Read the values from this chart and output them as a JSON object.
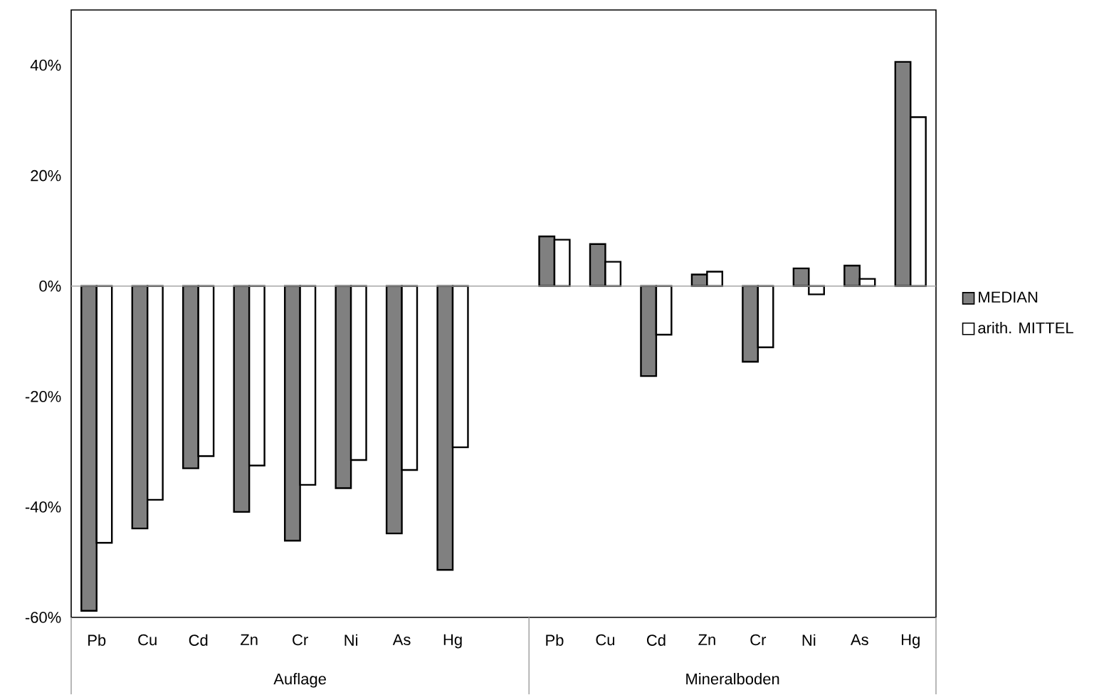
{
  "chart_data": {
    "type": "bar",
    "categories": [
      "Pb",
      "Cu",
      "Cd",
      "Zn",
      "Cr",
      "Ni",
      "As",
      "Hg",
      null,
      "Pb",
      "Cu",
      "Cd",
      "Zn",
      "Cr",
      "Ni",
      "As",
      "Hg"
    ],
    "series": [
      {
        "name": "MEDIAN",
        "color": "#808080",
        "values": [
          -58.8,
          -43.9,
          -33.0,
          -40.9,
          -46.1,
          -36.6,
          -44.8,
          -51.4,
          null,
          9.0,
          7.6,
          -16.3,
          2.1,
          -13.7,
          3.2,
          3.7,
          40.6
        ]
      },
      {
        "name": "arith. MITTEL",
        "color": "#ffffff",
        "values": [
          -46.5,
          -38.7,
          -30.8,
          -32.5,
          -36.0,
          -31.5,
          -33.3,
          -29.2,
          null,
          8.4,
          4.4,
          -8.8,
          2.6,
          -11.1,
          -1.5,
          1.3,
          30.6
        ]
      }
    ],
    "ylim": [
      -60,
      50
    ],
    "yticks": [
      {
        "value": -60,
        "label": "-60%"
      },
      {
        "value": -40,
        "label": "-40%"
      },
      {
        "value": -20,
        "label": "-20%"
      },
      {
        "value": 0,
        "label": "0%"
      },
      {
        "value": 20,
        "label": "20%"
      },
      {
        "value": 40,
        "label": "40%"
      }
    ],
    "ref_lines": [
      {
        "axis": "y",
        "value": 0,
        "color": "#a6a6a6"
      }
    ],
    "annotations": [
      "Auflage",
      "Mineralboden"
    ],
    "legend": "right"
  }
}
